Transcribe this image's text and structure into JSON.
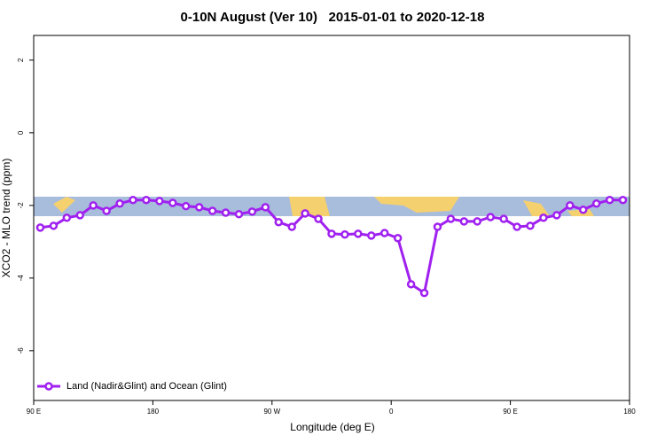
{
  "chart_data": {
    "type": "line",
    "title": "0-10N August (Ver 10)   2015-01-01 to 2020-12-18",
    "xlabel": "Longitude (deg E)",
    "ylabel": "XCO2 - MLO trend (ppm)",
    "x": [
      95,
      105,
      115,
      125,
      135,
      145,
      155,
      165,
      175,
      185,
      195,
      205,
      215,
      225,
      235,
      245,
      255,
      265,
      275,
      285,
      295,
      305,
      315,
      325,
      335,
      345,
      355,
      365,
      375,
      385,
      395,
      405,
      415,
      425,
      435,
      445,
      455,
      465,
      475,
      485,
      495,
      505,
      515,
      525,
      535
    ],
    "series": [
      {
        "name": "Land (Nadir&Glint) and Ocean (Glint)",
        "color": "#a020f0",
        "values": [
          -2.61,
          -2.56,
          -2.34,
          -2.27,
          -2.0,
          -2.15,
          -1.95,
          -1.85,
          -1.85,
          -1.88,
          -1.93,
          -2.02,
          -2.05,
          -2.15,
          -2.2,
          -2.24,
          -2.17,
          -2.05,
          -2.46,
          -2.59,
          -2.22,
          -2.37,
          -2.78,
          -2.8,
          -2.78,
          -2.83,
          -2.76,
          -2.9,
          -4.17,
          -4.41,
          -2.59,
          -2.37,
          -2.44,
          -2.44,
          -2.32,
          -2.37,
          -2.59,
          -2.56,
          -2.34,
          -2.27,
          -2.0,
          -2.12,
          -1.95,
          -1.85,
          -1.85
        ]
      }
    ],
    "xlim": [
      90,
      540
    ],
    "ylim": [
      -7.37,
      2.68
    ],
    "xticks": [
      {
        "value": 90,
        "label": "90 E"
      },
      180,
      {
        "value": 270,
        "label": "90 W"
      },
      {
        "value": 360,
        "label": "0"
      },
      {
        "value": 450,
        "label": "90 E"
      },
      {
        "value": 540,
        "label": "180"
      }
    ],
    "yticks": [
      2,
      0,
      -2,
      -4,
      -6
    ],
    "legend": "bottom-left"
  }
}
